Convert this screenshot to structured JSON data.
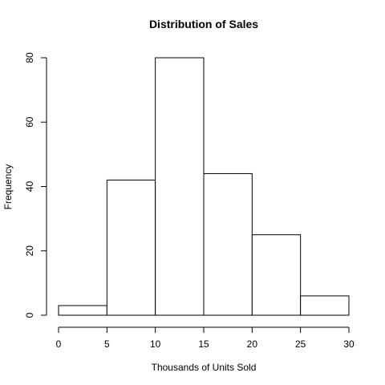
{
  "chart_data": {
    "type": "bar",
    "title": "Distribution of Sales",
    "xlabel": "Thousands of Units Sold",
    "ylabel": "Frequency",
    "bins": [
      {
        "x0": 0,
        "x1": 5,
        "count": 3
      },
      {
        "x0": 5,
        "x1": 10,
        "count": 42
      },
      {
        "x0": 10,
        "x1": 15,
        "count": 80
      },
      {
        "x0": 15,
        "x1": 20,
        "count": 44
      },
      {
        "x0": 20,
        "x1": 25,
        "count": 25
      },
      {
        "x0": 25,
        "x1": 30,
        "count": 6
      }
    ],
    "xlim": [
      0,
      30
    ],
    "ylim": [
      0,
      80
    ],
    "xticks": [
      0,
      5,
      10,
      15,
      20,
      25,
      30
    ],
    "yticks": [
      0,
      20,
      40,
      60,
      80
    ],
    "grid": false,
    "colors": {
      "bar_fill": "#ffffff",
      "bar_stroke": "#000000",
      "axis": "#000000"
    }
  }
}
